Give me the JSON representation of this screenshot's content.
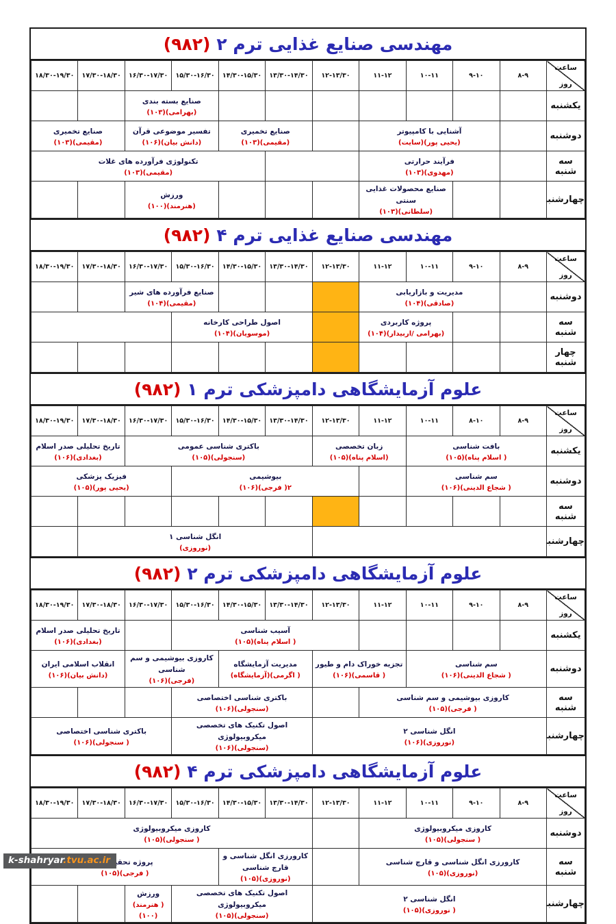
{
  "corner": {
    "time": "ساعت",
    "day": "روز"
  },
  "watermark": {
    "name": "k-shahryar",
    "suffix": ".tvu.ac.ir"
  },
  "colors": {
    "title_blue": "#2b2bb2",
    "code_red": "#d40000",
    "course_navy": "#15154a",
    "teacher_red": "#d40000",
    "blocked_orange": "#ffb414",
    "watermark_bg": "#58595b",
    "watermark_orange": "#f7941d"
  },
  "tables": [
    {
      "title": "مهندسی صنایع غذایی ترم ۲",
      "code": "(۹۸۲)",
      "times": [
        "۸-۹",
        "۹-۱۰",
        "۱۰-۱۱",
        "۱۱-۱۲",
        "۱۲-۱۳/۳۰",
        "۱۳/۳۰-۱۴/۳۰",
        "۱۴/۳۰-۱۵/۳۰",
        "۱۵/۳۰-۱۶/۳۰",
        "۱۶/۳۰-۱۷/۳۰",
        "۱۷/۳۰-۱۸/۳۰",
        "۱۸/۳۰-۱۹/۳۰"
      ],
      "rows": [
        {
          "day": "یکشنبه",
          "cells": [
            {
              "span": 1
            },
            {
              "span": 1
            },
            {
              "span": 1
            },
            {
              "span": 1
            },
            {
              "span": 1
            },
            {
              "span": 1
            },
            {
              "span": 1
            },
            {
              "span": 2,
              "course": "صنایع بسته بندی",
              "info": "(بهرامی)(۱۰۳)"
            },
            {
              "span": 1
            },
            {
              "span": 1
            }
          ]
        },
        {
          "day": "دوشنبه",
          "cells": [
            {
              "span": 1
            },
            {
              "span": 3,
              "course": "آشنایی با کامپیوتر",
              "info": "(یحیی پور)(سایت)"
            },
            {
              "span": 1
            },
            {
              "span": 2,
              "course": "صنایع تخمیری",
              "info": "(مقیمی)(۱۰۳)"
            },
            {
              "span": 2,
              "course": "تفسیر موضوعی قرآن",
              "info": "(دانش بیان)(۱۰۶)"
            },
            {
              "span": 2,
              "course": "صنایع تخمیری",
              "info": "(مقیمی)(۱۰۳)"
            }
          ]
        },
        {
          "day": "سه شنبه",
          "cells": [
            {
              "span": 1
            },
            {
              "span": 3,
              "course": "فرآیند حرارتی",
              "info": "(مهدوی)(۱۰۳)"
            },
            {
              "span": 2
            },
            {
              "span": 5,
              "course": "تکنولوژی فرآورده های غلات",
              "info": "(مقیمی)(۱۰۳)"
            }
          ]
        },
        {
          "day": "چهارشنبه",
          "cells": [
            {
              "span": 1
            },
            {
              "span": 1
            },
            {
              "span": 2,
              "course": "صنایع محصولات غذایی سنتی",
              "info": "(سلطانی)(۱۰۳)"
            },
            {
              "span": 1
            },
            {
              "span": 1
            },
            {
              "span": 1
            },
            {
              "span": 2,
              "course": "ورزش",
              "info": "(هنرمند)(۱۰۰)"
            },
            {
              "span": 1
            },
            {
              "span": 1
            }
          ]
        }
      ]
    },
    {
      "title": "مهندسی صنایع غذایی ترم ۴",
      "code": "(۹۸۲)",
      "times": [
        "۸-۹",
        "۹-۱۰",
        "۱۰-۱۱",
        "۱۱-۱۲",
        "۱۲-۱۳/۳۰",
        "۱۳/۳۰-۱۴/۳۰",
        "۱۴/۳۰-۱۵/۳۰",
        "۱۵/۳۰-۱۶/۳۰",
        "۱۶/۳۰-۱۷/۳۰",
        "۱۷/۳۰-۱۸/۳۰",
        "۱۸/۳۰-۱۹/۳۰"
      ],
      "rows": [
        {
          "day": "دوشنبه",
          "cells": [
            {
              "span": 1
            },
            {
              "span": 3,
              "course": "مدیریت و بازاریابی",
              "info": "(صادقی)(۱۰۴)"
            },
            {
              "span": 1,
              "orange": true
            },
            {
              "span": 1
            },
            {
              "span": 1
            },
            {
              "span": 2,
              "course": "صنایع فرآورده های شیر",
              "info": "(مقیمی)(۱۰۴)"
            },
            {
              "span": 1
            },
            {
              "span": 1
            }
          ]
        },
        {
          "day": "سه شنبه",
          "cells": [
            {
              "span": 1
            },
            {
              "span": 1
            },
            {
              "span": 2,
              "course": "پروژه کاربردی",
              "info": "(بهرامی /اربیدار)(۱۰۴)"
            },
            {
              "span": 1,
              "orange": true
            },
            {
              "span": 3,
              "course": "اصول طراحی کارخانه",
              "info": "(موسویان)(۱۰۴)"
            },
            {
              "span": 3
            }
          ]
        },
        {
          "day": "چهار شنبه",
          "cells": [
            {
              "span": 1
            },
            {
              "span": 1
            },
            {
              "span": 1
            },
            {
              "span": 1
            },
            {
              "span": 1,
              "orange": true
            },
            {
              "span": 1
            },
            {
              "span": 1
            },
            {
              "span": 1
            },
            {
              "span": 1
            },
            {
              "span": 1
            },
            {
              "span": 1
            }
          ]
        }
      ]
    },
    {
      "title": "علوم آزمایشگاهی دامپزشکی ترم ۱",
      "code": "(۹۸۲)",
      "times": [
        "۸-۹",
        "۸-۱۰",
        "۱۰-۱۱",
        "۱۱-۱۲",
        "۱۲-۱۳/۳۰",
        "۱۳/۳۰-۱۴/۳۰",
        "۱۴/۳۰-۱۵/۳۰",
        "۱۵/۳۰-۱۶/۳۰",
        "۱۶/۳۰-۱۷/۳۰",
        "۱۷/۳۰-۱۸/۳۰",
        "۱۸/۳۰-۱۹/۳۰"
      ],
      "rows": [
        {
          "day": "یکشنبه",
          "cells": [
            {
              "span": 3,
              "course": "بافت شناسی",
              "info": "( اسلام پناه)(۱۰۵)"
            },
            {
              "span": 2,
              "course": "زبان تخصصی",
              "info": "(اسلام پناه)(۱۰۵)"
            },
            {
              "span": 4,
              "course": "باکتری شناسی عمومی",
              "info": "(سنجولی)(۱۰۵)"
            },
            {
              "span": 2,
              "course": "تاریخ تحلیلی صدر اسلام",
              "info": "(بغدادی)(۱۰۶)"
            }
          ]
        },
        {
          "day": "دوشنبه",
          "cells": [
            {
              "span": 3,
              "course": "سم شناسی",
              "info": "( شجاع الدینی)(۱۰۶)"
            },
            {
              "span": 1
            },
            {
              "span": 4,
              "course": "بیوشیمی",
              "info": "۲( فرجی)(۱۰۶)"
            },
            {
              "span": 3,
              "course": "فیزیک پزشکی",
              "info": "(یحیی پور)(۱۰۵)"
            }
          ]
        },
        {
          "day": "سه شنبه",
          "cells": [
            {
              "span": 1
            },
            {
              "span": 1
            },
            {
              "span": 1
            },
            {
              "span": 1
            },
            {
              "span": 1,
              "orange": true
            },
            {
              "span": 1
            },
            {
              "span": 1
            },
            {
              "span": 1
            },
            {
              "span": 1
            },
            {
              "span": 1
            },
            {
              "span": 1
            }
          ]
        },
        {
          "day": "چهارشنبه",
          "cells": [
            {
              "span": 5
            },
            {
              "span": 5,
              "course": "انگل شناسی ۱",
              "info": "(نوروزی)"
            },
            {
              "span": 1
            }
          ]
        }
      ]
    },
    {
      "title": "علوم آزمایشگاهی دامپزشکی ترم ۲",
      "code": "(۹۸۲)",
      "times": [
        "۸-۹",
        "۹-۱۰",
        "۱۰-۱۱",
        "۱۱-۱۲",
        "۱۲-۱۳/۳۰",
        "۱۳/۳۰-۱۴/۳۰",
        "۱۴/۳۰-۱۵/۳۰",
        "۱۵/۳۰-۱۶/۳۰",
        "۱۶/۳۰-۱۷/۳۰",
        "۱۷/۳۰-۱۸/۳۰",
        "۱۸/۳۰-۱۹/۳۰"
      ],
      "rows": [
        {
          "day": "یکشنبه",
          "cells": [
            {
              "span": 1
            },
            {
              "span": 1
            },
            {
              "span": 1
            },
            {
              "span": 1
            },
            {
              "span": 4,
              "course": "آسیب شناسی",
              "info": "( اسلام پناه)(۱۰۵)"
            },
            {
              "span": 1
            },
            {
              "span": 2,
              "course": "تاریخ تحلیلی صدر اسلام",
              "info": "(بغدادی)(۱۰۶)"
            }
          ]
        },
        {
          "day": "دوشنبه",
          "cells": [
            {
              "span": 3,
              "course": "سم شناسی",
              "info": "( شجاع الدینی)(۱۰۶)"
            },
            {
              "span": 2,
              "course": "تجزیه خوراک دام و طیور",
              "info": "( قاسمی)(۱۰۶)"
            },
            {
              "span": 2,
              "course": "مدیریت آزمایشگاه",
              "info": "( اگرمی)(آزمایشگاه)"
            },
            {
              "span": 2,
              "course": "کاروزی بیوشیمی و سم شناسی",
              "info": "(فرجی)(۱۰۶)"
            },
            {
              "span": 2,
              "course": "انقلاب اسلامی ایران",
              "info": "(دانش بیان)(۱۰۶)"
            }
          ]
        },
        {
          "day": "سه شنبه",
          "cells": [
            {
              "span": 4,
              "course": "کاروزی بیوشیمی و سم شناسی",
              "info": "( فرجی)(۱۰۵)"
            },
            {
              "span": 1
            },
            {
              "span": 3,
              "course": "باکتری شناسی اختصاصی",
              "info": "(سنجولی)(۱۰۶)"
            },
            {
              "span": 1
            },
            {
              "span": 1
            },
            {
              "span": 1
            }
          ]
        },
        {
          "day": "چهارشنبه",
          "cells": [
            {
              "span": 5,
              "course": "انگل شناسی ۲",
              "info": "(نوروزی)(۱۰۶)"
            },
            {
              "span": 3,
              "course": "اصول تکنیک های تخصصی میکروبیولوژی",
              "info": "(سنجولی)(۱۰۶)"
            },
            {
              "span": 3,
              "course": "باکتری شناسی اختصاصی",
              "info": "( سنجولی)(۱۰۶)"
            }
          ]
        }
      ]
    },
    {
      "title": "علوم آزمایشگاهی دامپزشکی ترم ۴",
      "code": "(۹۸۲)",
      "times": [
        "۸-۹",
        "۹-۱۰",
        "۱۰-۱۱",
        "۱۱-۱۲",
        "۱۲-۱۳/۳۰",
        "۱۳/۳۰-۱۴/۳۰",
        "۱۴/۳۰-۱۵/۳۰",
        "۱۵/۳۰-۱۶/۳۰",
        "۱۶/۳۰-۱۷/۳۰",
        "۱۷/۳۰-۱۸/۳۰",
        "۱۸/۳۰-۱۹/۳۰"
      ],
      "rows": [
        {
          "day": "دوشنبه",
          "cells": [
            {
              "span": 4,
              "course": "کاروزی میکروبیولوژی",
              "info": "( سنجولی)(۱۰۵)"
            },
            {
              "span": 1
            },
            {
              "span": 6,
              "course": "کاروزی میکروبیولوژی",
              "info": "( سنجولی)(۱۰۵)"
            }
          ]
        },
        {
          "day": "سه شنبه",
          "cells": [
            {
              "span": 4,
              "course": "کارورزی انگل شناسی و قارچ شناسی",
              "info": "(نوروزی)(۱۰۵)"
            },
            {
              "span": 1
            },
            {
              "span": 2,
              "course": "کارورزی انگل شناسی و قارچ شناسی",
              "info": "(نوروزی)(۱۰۵)"
            },
            {
              "span": 4,
              "course": "پروژه تحقیقاتی",
              "info": "( فرجی)(۱۰۵)"
            }
          ]
        },
        {
          "day": "چهارشنبه",
          "cells": [
            {
              "span": 5,
              "course": "انگل شناسی ۲",
              "info": "( نوروزی)(۱۰۵)"
            },
            {
              "span": 3,
              "course": "اصول تکنیک های تخصصی میکروبیولوژی",
              "info": "(سنجولی)(۱۰۵)"
            },
            {
              "span": 1,
              "course": "ورزش",
              "info": "( هنرمند)(۱۰۰)"
            },
            {
              "span": 1
            },
            {
              "span": 1
            }
          ]
        }
      ]
    }
  ]
}
